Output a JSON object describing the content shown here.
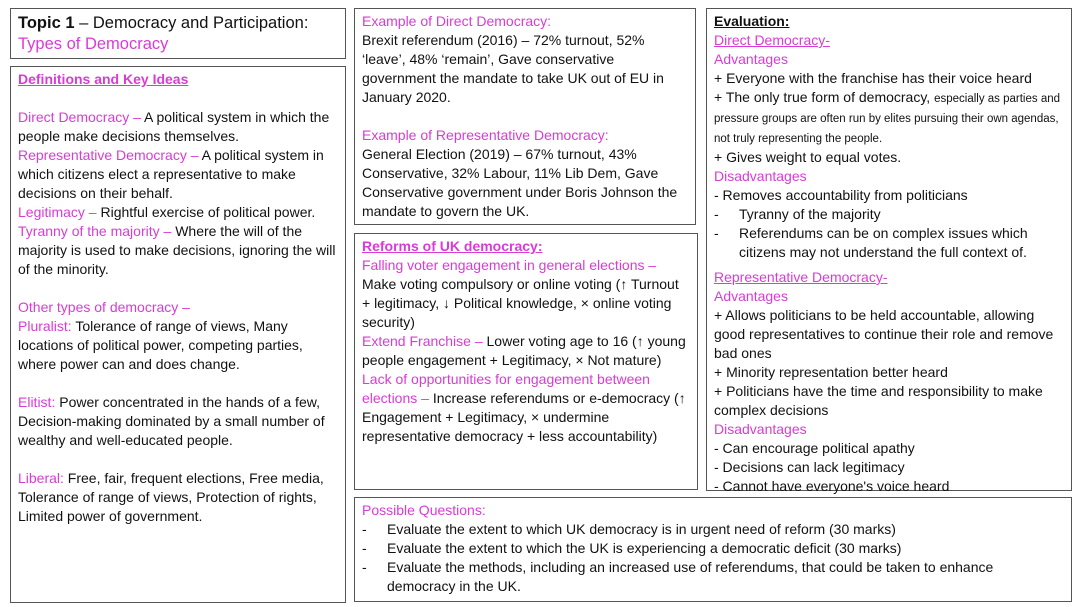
{
  "colors": {
    "accent": "#d93bd6",
    "text": "#111111",
    "border": "#555555"
  },
  "title": {
    "bold": "Topic 1",
    "rest": " – Democracy and Participation:",
    "subtitle": "Types of Democracy"
  },
  "definitions": {
    "heading": "Definitions and Key Ideas",
    "items": [
      {
        "term": "Direct Democracy – ",
        "text": "A political system in which the people make decisions themselves."
      },
      {
        "term": "Representative Democracy – ",
        "text": "A political system in which citizens elect a representative to make decisions on their behalf."
      },
      {
        "term": "Legitimacy – ",
        "text": "Rightful exercise of political power."
      },
      {
        "term": "Tyranny of the majority – ",
        "text": "Where the will of the majority is used to make decisions, ignoring the will of the minority."
      }
    ],
    "other_heading": "Other types of democracy –",
    "others": [
      {
        "term": "Pluralist:",
        "text": " Tolerance of range of views, Many locations of political power, competing parties, where power can and does change."
      },
      {
        "term": "Elitist:",
        "text": " Power concentrated in the hands of a few, Decision-making dominated by a small number of wealthy and well-educated people."
      },
      {
        "term": "Liberal:",
        "text": " Free, fair, frequent elections, Free media, Tolerance of range of views, Protection of rights, Limited power of government."
      }
    ]
  },
  "examples": {
    "direct_heading": "Example of Direct Democracy:",
    "direct_text": "Brexit referendum (2016) – 72% turnout, 52% ‘leave’, 48% ‘remain’, Gave conservative government the mandate to take UK out of EU in January 2020.",
    "rep_heading": "Example of Representative Democracy:",
    "rep_text": "General Election (2019) – 67% turnout, 43% Conservative, 32% Labour, 11% Lib Dem, Gave Conservative government under Boris Johnson the mandate to govern the UK."
  },
  "reforms": {
    "heading": "Reforms of UK democracy:",
    "items": [
      {
        "term": "Falling voter engagement in general elections – ",
        "text": "Make voting compulsory or online voting (↑ Turnout + legitimacy, ↓ Political knowledge, ×  online voting security)"
      },
      {
        "term": "Extend Franchise – ",
        "text": "Lower voting age to 16 (↑ young people engagement + Legitimacy, × Not mature)"
      },
      {
        "term": "Lack of opportunities for engagement between elections – ",
        "text": "Increase referendums or e-democracy (↑ Engagement + Legitimacy, × undermine representative democracy + less accountability)"
      }
    ]
  },
  "evaluation": {
    "heading": "Evaluation:",
    "direct": {
      "heading": "Direct Democracy-",
      "adv_label": "Advantages",
      "adv1": "+ Everyone with the franchise has their voice heard",
      "adv2_main": "+ The only true form of democracy, ",
      "adv2_small": "especially as parties and pressure groups are often run by elites pursuing their own agendas, not truly representing the people.",
      "adv3": "+ Gives weight to equal votes.",
      "dis_label": "Disadvantages",
      "dis1": "- Removes accountability from politicians",
      "dis2": "Tyranny of the majority",
      "dis3": "Referendums can be on complex issues which citizens may not understand the full context of."
    },
    "rep": {
      "heading": "Representative Democracy-",
      "adv_label": "Advantages",
      "adv": [
        "+ Allows politicians to be held accountable, allowing good representatives to continue their role and remove bad ones",
        "+  Minority representation better heard",
        "+ Politicians have the time and responsibility to make complex decisions"
      ],
      "dis_label": "Disadvantages",
      "dis": [
        "-  Can encourage political apathy",
        "- Decisions can lack legitimacy",
        "- Cannot have everyone's voice heard"
      ]
    }
  },
  "questions": {
    "heading": "Possible Questions:",
    "items": [
      "Evaluate the extent to which UK democracy is in urgent need of reform (30 marks)",
      "Evaluate the extent to which the UK is experiencing a democratic deficit (30 marks)",
      "Evaluate the methods, including an increased use of referendums, that could be taken to enhance democracy in the UK."
    ],
    "bullet": "-"
  }
}
